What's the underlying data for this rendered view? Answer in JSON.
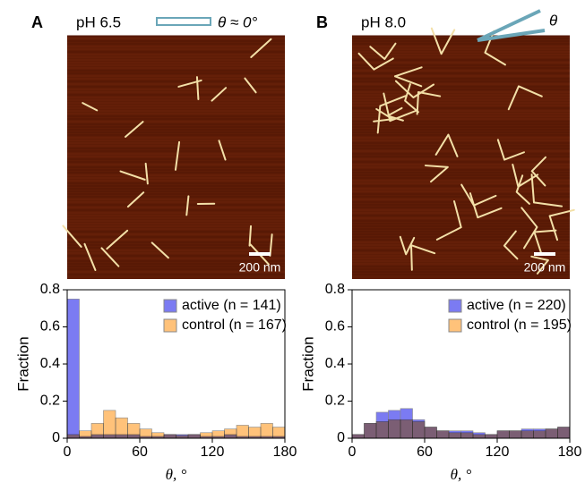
{
  "chart_data": [
    {
      "type": "histogram",
      "panel": "A",
      "condition": "pH 6.5",
      "angle_label": "θ ≈ 0°",
      "scale_bar": "200 nm",
      "xlabel": "θ, °",
      "ylabel": "Fraction",
      "bins": [
        0,
        10,
        20,
        30,
        40,
        50,
        60,
        70,
        80,
        90,
        100,
        110,
        120,
        130,
        140,
        150,
        160,
        170,
        180
      ],
      "xlim": [
        0,
        180
      ],
      "xticks": [
        0,
        60,
        120,
        180
      ],
      "ylim": [
        0,
        0.8
      ],
      "yticks": [
        0,
        0.2,
        0.4,
        0.6,
        0.8
      ],
      "legend": "upper right",
      "series": [
        {
          "name": "active (n = 141)",
          "color": "#7b7bf2",
          "values": [
            0.75,
            0.01,
            0.02,
            0.02,
            0.02,
            0.02,
            0.01,
            0.01,
            0.02,
            0.02,
            0.02,
            0.01,
            0.01,
            0.02,
            0.01,
            0.01,
            0.01,
            0.01
          ]
        },
        {
          "name": "control (n = 167)",
          "color": "#ffc27a",
          "values": [
            0.02,
            0.04,
            0.08,
            0.15,
            0.11,
            0.08,
            0.05,
            0.03,
            0.02,
            0.015,
            0.02,
            0.03,
            0.04,
            0.05,
            0.07,
            0.06,
            0.08,
            0.06
          ]
        }
      ]
    },
    {
      "type": "histogram",
      "panel": "B",
      "condition": "pH 8.0",
      "angle_label": "θ",
      "scale_bar": "200 nm",
      "xlabel": "θ, °",
      "ylabel": "Fraction",
      "bins": [
        0,
        10,
        20,
        30,
        40,
        50,
        60,
        70,
        80,
        90,
        100,
        110,
        120,
        130,
        140,
        150,
        160,
        170,
        180
      ],
      "xlim": [
        0,
        180
      ],
      "xticks": [
        0,
        60,
        120,
        180
      ],
      "ylim": [
        0,
        0.8
      ],
      "yticks": [
        0,
        0.2,
        0.4,
        0.6,
        0.8
      ],
      "legend": "upper right",
      "series": [
        {
          "name": "active (n = 220)",
          "color": "#7b7bf2",
          "values": [
            0.02,
            0.08,
            0.14,
            0.15,
            0.16,
            0.1,
            0.06,
            0.04,
            0.04,
            0.04,
            0.03,
            0.02,
            0.04,
            0.04,
            0.05,
            0.05,
            0.05,
            0.06
          ]
        },
        {
          "name": "control (n = 195)",
          "color": "#ffc27a",
          "values": [
            0.02,
            0.08,
            0.09,
            0.1,
            0.1,
            0.09,
            0.06,
            0.04,
            0.03,
            0.03,
            0.02,
            0.02,
            0.04,
            0.04,
            0.04,
            0.04,
            0.05,
            0.06
          ]
        }
      ]
    }
  ]
}
